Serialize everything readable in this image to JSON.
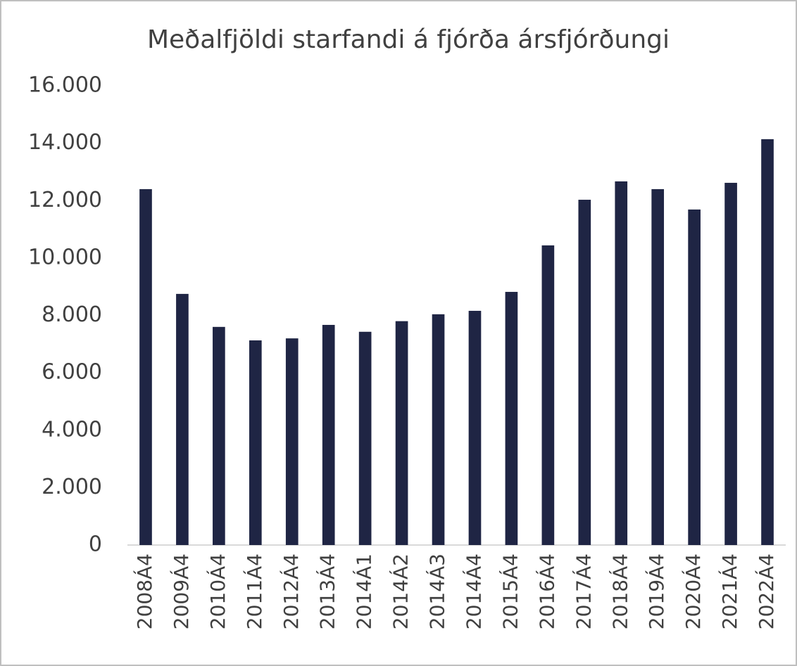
{
  "chart_data": {
    "type": "bar",
    "title": "Meðalfjöldi starfandi á fjórða ársfjórðungi",
    "categories": [
      "2008Á4",
      "2009Á4",
      "2010Á4",
      "2011Á4",
      "2012Á4",
      "2013Á4",
      "2014Á1",
      "2014Á2",
      "2014Á3",
      "2014Á4",
      "2015Á4",
      "2016Á4",
      "2017Á4",
      "2018Á4",
      "2019Á4",
      "2020Á4",
      "2021Á4",
      "2022Á4"
    ],
    "values": [
      12400,
      8750,
      7600,
      7130,
      7200,
      7670,
      7430,
      7800,
      8040,
      8160,
      8820,
      10440,
      12030,
      12670,
      12400,
      11690,
      12620,
      14140
    ],
    "color": "#1f2544",
    "ylim": [
      0,
      16000
    ],
    "yticks": [
      0,
      {
        "value": 2000,
        "label": "2.000"
      },
      {
        "value": 4000,
        "label": "4.000"
      },
      {
        "value": 6000,
        "label": "6.000"
      },
      {
        "value": 8000,
        "label": "8.000"
      },
      {
        "value": 10000,
        "label": "10.000"
      },
      {
        "value": 12000,
        "label": "12.000"
      },
      {
        "value": 14000,
        "label": "14.000"
      },
      {
        "value": 16000,
        "label": "16.000"
      }
    ],
    "grid": false
  }
}
